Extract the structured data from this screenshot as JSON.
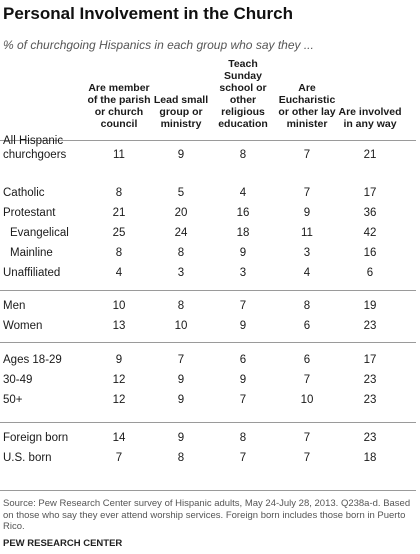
{
  "title": "Personal Involvement in the Church",
  "subtitle": "% of churchgoing Hispanics in each group who say they ...",
  "source": "Source: Pew Research Center survey of Hispanic adults, May 24-July 28, 2013. Q238a-d. Based on those who say they ever attend worship services. Foreign born includes those born in Puerto Rico.",
  "footer": "PEW RESEARCH CENTER",
  "chart_data": {
    "type": "table",
    "columns": [
      "Are member of the parish or church council",
      "Lead small group or ministry",
      "Teach Sunday school or other religious education",
      "Are Eucharistic or other lay minister",
      "Are involved in any way"
    ],
    "rows": [
      {
        "label": "All Hispanic\nchurchgoers",
        "values": [
          "11",
          "9",
          "8",
          "7",
          "21"
        ]
      },
      {
        "label": "Catholic",
        "values": [
          "8",
          "5",
          "4",
          "7",
          "17"
        ]
      },
      {
        "label": "Protestant",
        "values": [
          "21",
          "20",
          "16",
          "9",
          "36"
        ]
      },
      {
        "label": "Evangelical",
        "indent": true,
        "values": [
          "25",
          "24",
          "18",
          "11",
          "42"
        ]
      },
      {
        "label": "Mainline",
        "indent": true,
        "values": [
          "8",
          "8",
          "9",
          "3",
          "16"
        ]
      },
      {
        "label": "Unaffiliated",
        "values": [
          "4",
          "3",
          "3",
          "4",
          "6"
        ]
      },
      {
        "label": "Men",
        "values": [
          "10",
          "8",
          "7",
          "8",
          "19"
        ]
      },
      {
        "label": "Women",
        "values": [
          "13",
          "10",
          "9",
          "6",
          "23"
        ]
      },
      {
        "label": "Ages 18-29",
        "values": [
          "9",
          "7",
          "6",
          "6",
          "17"
        ]
      },
      {
        "label": "30-49",
        "values": [
          "12",
          "9",
          "9",
          "7",
          "23"
        ]
      },
      {
        "label": "50+",
        "values": [
          "12",
          "9",
          "7",
          "10",
          "23"
        ]
      },
      {
        "label": "Foreign born",
        "values": [
          "14",
          "9",
          "8",
          "7",
          "23"
        ]
      },
      {
        "label": "U.S. born",
        "values": [
          "7",
          "8",
          "7",
          "7",
          "18"
        ]
      }
    ]
  },
  "header_display": [
    "Are member\nof the parish\nor church\ncouncil",
    "Lead small\ngroup or\nministry",
    "Teach\nSunday\nschool or\nother\nreligious\neducation",
    "Are\nEucharistic\nor other lay\nminister",
    "Are involved\nin any way"
  ]
}
